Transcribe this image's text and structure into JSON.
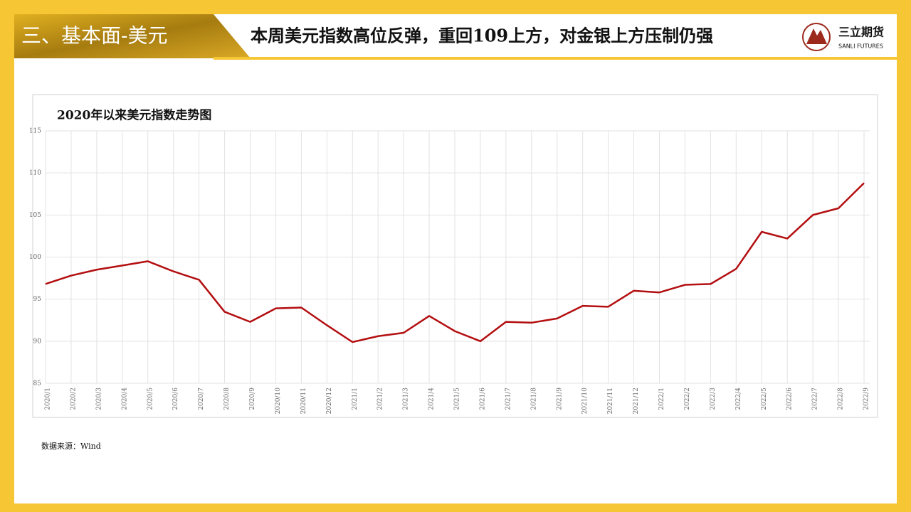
{
  "header": {
    "section": "三、基本面-美元",
    "title": "本周美元指数高位反弹，重回109上方，对金银上方压制仍强",
    "logo_name": "三立期货",
    "logo_sub": "SANLI FUTURES"
  },
  "chart_data": {
    "type": "line",
    "title": "2020年以来美元指数走势图",
    "categories": [
      "2020/1",
      "2020/2",
      "2020/3",
      "2020/4",
      "2020/5",
      "2020/6",
      "2020/7",
      "2020/8",
      "2020/9",
      "2020/10",
      "2020/11",
      "2020/12",
      "2021/1",
      "2021/2",
      "2021/3",
      "2021/4",
      "2021/5",
      "2021/6",
      "2021/7",
      "2021/8",
      "2021/9",
      "2021/10",
      "2021/11",
      "2021/12",
      "2022/1",
      "2022/2",
      "2022/3",
      "2022/4",
      "2022/5",
      "2022/6",
      "2022/7",
      "2022/8",
      "2022/9"
    ],
    "series": [
      {
        "name": "美元指数",
        "color": "#b30e10",
        "values": [
          96.8,
          97.8,
          98.5,
          99.0,
          99.5,
          98.3,
          97.3,
          93.5,
          92.3,
          93.9,
          94.0,
          91.9,
          89.9,
          90.6,
          91.0,
          93.0,
          91.2,
          90.0,
          92.3,
          92.2,
          92.7,
          94.2,
          94.1,
          96.0,
          95.8,
          96.7,
          96.8,
          98.6,
          103.0,
          102.2,
          105.0,
          105.8,
          108.8
        ]
      }
    ],
    "ylim": [
      85,
      115
    ],
    "yticks": [
      85,
      90,
      95,
      100,
      105,
      110,
      115
    ],
    "grid": true
  },
  "source": "数据来源：Wind"
}
